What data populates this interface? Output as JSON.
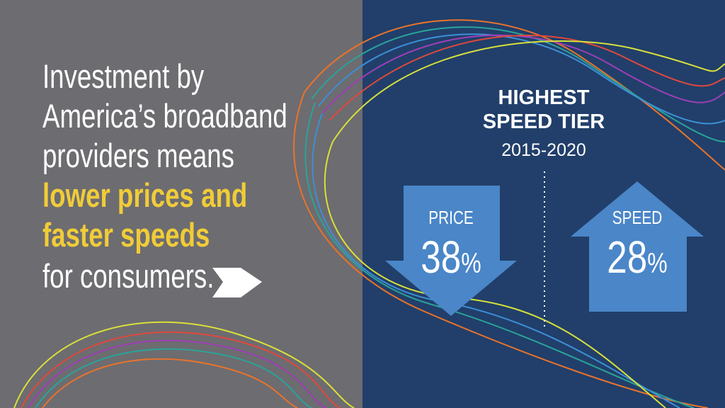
{
  "headline": {
    "lines": [
      "Investment by",
      "America’s broadband",
      "providers means"
    ],
    "highlight": [
      "lower prices and",
      "faster speeds"
    ],
    "closing": "for consumers."
  },
  "panel": {
    "title": [
      "HIGHEST",
      "SPEED TIER"
    ],
    "period": "2015-2020",
    "price": {
      "label": "PRICE",
      "number": "38",
      "unit": "%"
    },
    "speed": {
      "label": "SPEED",
      "number": "28",
      "unit": "%"
    }
  }
}
